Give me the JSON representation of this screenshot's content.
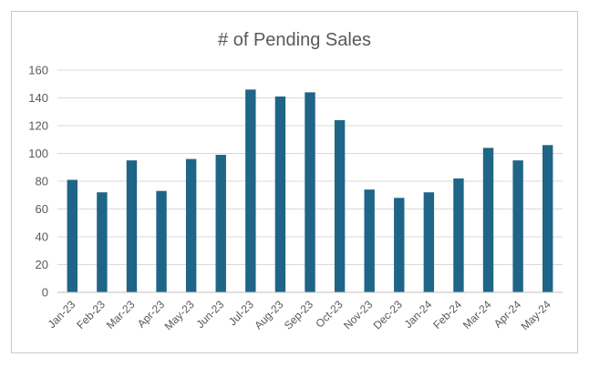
{
  "chart_data": {
    "type": "bar",
    "title": "# of Pending Sales",
    "xlabel": "",
    "ylabel": "",
    "categories": [
      "Jan-23",
      "Feb-23",
      "Mar-23",
      "Apr-23",
      "May-23",
      "Jun-23",
      "Jul-23",
      "Aug-23",
      "Sep-23",
      "Oct-23",
      "Nov-23",
      "Dec-23",
      "Jan-24",
      "Feb-24",
      "Mar-24",
      "Apr-24",
      "May-24"
    ],
    "values": [
      81,
      72,
      95,
      73,
      96,
      99,
      146,
      141,
      144,
      124,
      74,
      68,
      72,
      82,
      104,
      95,
      106
    ],
    "ylim": [
      0,
      160
    ],
    "yticks": [
      0,
      20,
      40,
      60,
      80,
      100,
      120,
      140,
      160
    ],
    "grid": true,
    "legend": "none",
    "bar_color": "#1F6587"
  }
}
